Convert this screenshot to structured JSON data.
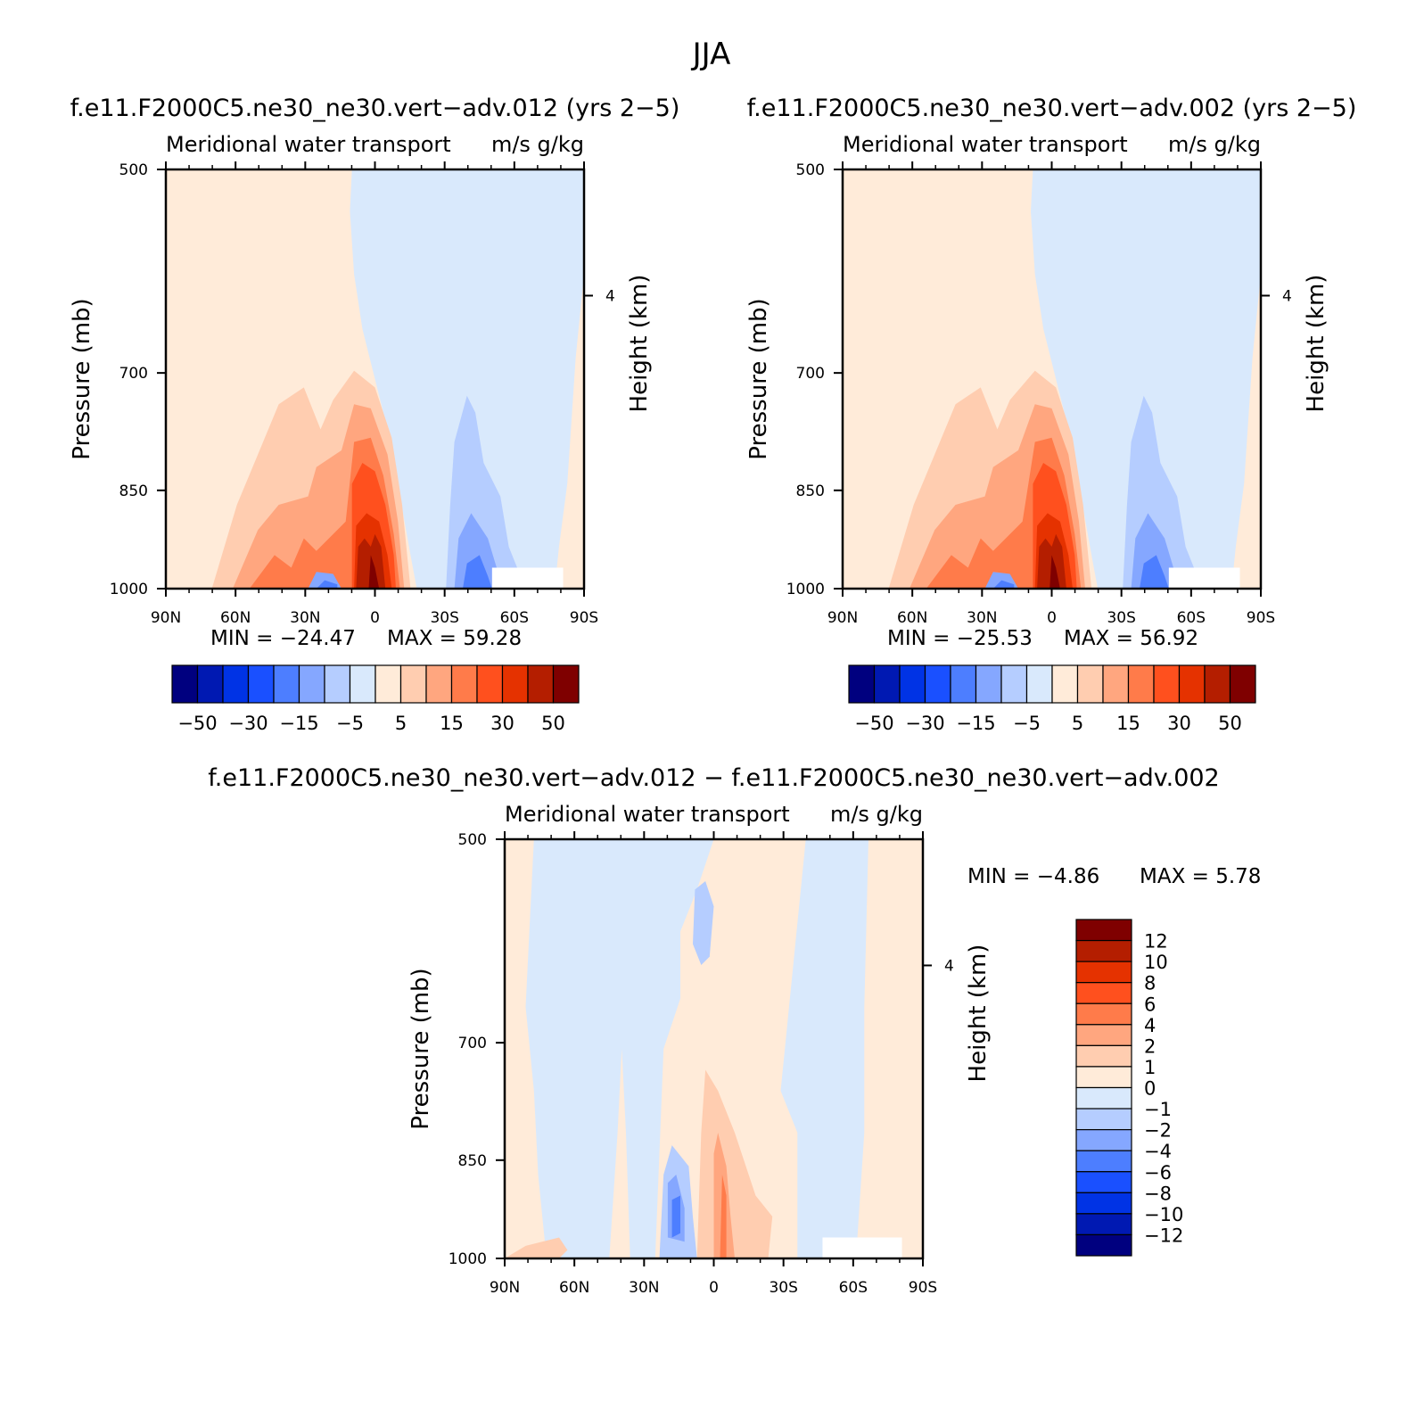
{
  "figure": {
    "title": "JJA"
  },
  "chart_data": [
    {
      "type": "contour",
      "panel_title": "f.e11.F2000C5.ne30_ne30.vert−adv.012 (yrs 2−5)",
      "left_subtitle": "Meridional water transport",
      "right_subtitle": "m/s g/kg",
      "xlabel": "",
      "ylabel": "Pressure (mb)",
      "ylabel_right": "Height (km)",
      "x_ticks": [
        "90N",
        "60N",
        "30N",
        "0",
        "30S",
        "60S",
        "90S"
      ],
      "y_ticks": [
        "500",
        "700",
        "850",
        "1000"
      ],
      "y_right_ticks": [
        "4"
      ],
      "ylim": [
        1000,
        500
      ],
      "min_label": "MIN = −24.47",
      "max_label": "MAX = 59.28",
      "min": -24.47,
      "max": 59.28,
      "colorbar_labels": [
        "−50",
        "−30",
        "−15",
        "−5",
        "5",
        "15",
        "30",
        "50"
      ]
    },
    {
      "type": "contour",
      "panel_title": "f.e11.F2000C5.ne30_ne30.vert−adv.002 (yrs 2−5)",
      "left_subtitle": "Meridional water transport",
      "right_subtitle": "m/s g/kg",
      "xlabel": "",
      "ylabel": "Pressure (mb)",
      "ylabel_right": "Height (km)",
      "x_ticks": [
        "90N",
        "60N",
        "30N",
        "0",
        "30S",
        "60S",
        "90S"
      ],
      "y_ticks": [
        "500",
        "700",
        "850",
        "1000"
      ],
      "y_right_ticks": [
        "4"
      ],
      "ylim": [
        1000,
        500
      ],
      "min_label": "MIN = −25.53",
      "max_label": "MAX = 56.92",
      "min": -25.53,
      "max": 56.92,
      "colorbar_labels": [
        "−50",
        "−30",
        "−15",
        "−5",
        "5",
        "15",
        "30",
        "50"
      ]
    },
    {
      "type": "contour",
      "panel_title": "f.e11.F2000C5.ne30_ne30.vert−adv.012 − f.e11.F2000C5.ne30_ne30.vert−adv.002",
      "left_subtitle": "Meridional water transport",
      "right_subtitle": "m/s g/kg",
      "xlabel": "",
      "ylabel": "Pressure (mb)",
      "ylabel_right": "Height (km)",
      "x_ticks": [
        "90N",
        "60N",
        "30N",
        "0",
        "30S",
        "60S",
        "90S"
      ],
      "y_ticks": [
        "500",
        "700",
        "850",
        "1000"
      ],
      "y_right_ticks": [
        "4"
      ],
      "ylim": [
        1000,
        500
      ],
      "min_label": "MIN = −4.86",
      "max_label": "MAX = 5.78",
      "min": -4.86,
      "max": 5.78,
      "colorbar_labels": [
        "12",
        "10",
        "8",
        "6",
        "4",
        "2",
        "1",
        "0",
        "−1",
        "−2",
        "−4",
        "−6",
        "−8",
        "−10",
        "−12"
      ]
    }
  ],
  "colors": {
    "palette_16": [
      "#00007f",
      "#0019b2",
      "#0033e5",
      "#1a50ff",
      "#4d7eff",
      "#85a7ff",
      "#b5cdff",
      "#d9e9fc",
      "#ffebd9",
      "#ffcdb0",
      "#ffa67f",
      "#ff7b4a",
      "#ff501e",
      "#e53200",
      "#b41e00",
      "#7f0000"
    ]
  }
}
